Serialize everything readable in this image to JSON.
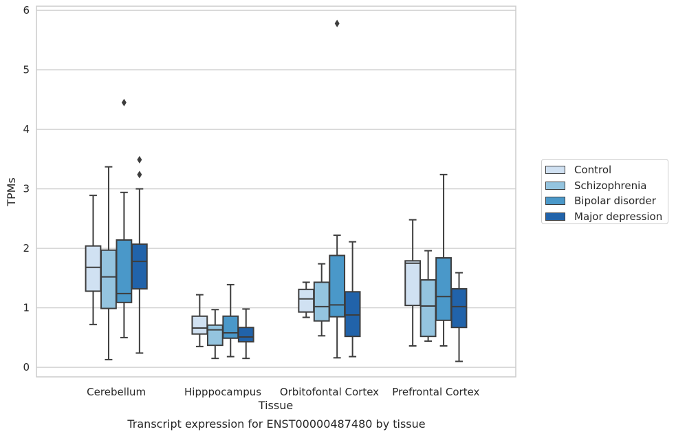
{
  "chart_data": {
    "type": "box",
    "title": "",
    "caption": "Transcript expression for ENST00000487480 by tissue",
    "xlabel": "Tissue",
    "ylabel": "TPMs",
    "ylim": [
      -0.16,
      6.07
    ],
    "yticks": [
      0,
      1,
      2,
      3,
      4,
      5,
      6
    ],
    "grid": "horizontal",
    "legend_position": "right",
    "categories": [
      "Cerebellum",
      "Hipppocampus",
      "Orbitofontal Cortex",
      "Prefrontal Cortex"
    ],
    "series": [
      {
        "name": "Control",
        "color": "#d0e1f2",
        "boxes": [
          {
            "whisker_low": 0.72,
            "q1": 1.28,
            "median": 1.68,
            "q3": 2.04,
            "whisker_high": 2.89,
            "outliers": []
          },
          {
            "whisker_low": 0.35,
            "q1": 0.56,
            "median": 0.66,
            "q3": 0.86,
            "whisker_high": 1.22,
            "outliers": []
          },
          {
            "whisker_low": 0.84,
            "q1": 0.93,
            "median": 1.15,
            "q3": 1.31,
            "whisker_high": 1.43,
            "outliers": []
          },
          {
            "whisker_low": 0.36,
            "q1": 1.04,
            "median": 1.75,
            "q3": 1.79,
            "whisker_high": 2.48,
            "outliers": []
          }
        ]
      },
      {
        "name": "Schizophrenia",
        "color": "#94c4df",
        "boxes": [
          {
            "whisker_low": 0.13,
            "q1": 0.99,
            "median": 1.52,
            "q3": 1.97,
            "whisker_high": 3.37,
            "outliers": []
          },
          {
            "whisker_low": 0.15,
            "q1": 0.37,
            "median": 0.63,
            "q3": 0.71,
            "whisker_high": 0.97,
            "outliers": []
          },
          {
            "whisker_low": 0.53,
            "q1": 0.78,
            "median": 1.02,
            "q3": 1.43,
            "whisker_high": 1.74,
            "outliers": []
          },
          {
            "whisker_low": 0.44,
            "q1": 0.52,
            "median": 1.03,
            "q3": 1.47,
            "whisker_high": 1.96,
            "outliers": []
          }
        ]
      },
      {
        "name": "Bipolar disorder",
        "color": "#4a98c9",
        "boxes": [
          {
            "whisker_low": 0.5,
            "q1": 1.09,
            "median": 1.24,
            "q3": 2.14,
            "whisker_high": 2.94,
            "outliers": [
              4.45
            ]
          },
          {
            "whisker_low": 0.18,
            "q1": 0.49,
            "median": 0.58,
            "q3": 0.86,
            "whisker_high": 1.39,
            "outliers": []
          },
          {
            "whisker_low": 0.16,
            "q1": 0.85,
            "median": 1.05,
            "q3": 1.88,
            "whisker_high": 2.22,
            "outliers": [
              5.78
            ]
          },
          {
            "whisker_low": 0.36,
            "q1": 0.79,
            "median": 1.19,
            "q3": 1.84,
            "whisker_high": 3.24,
            "outliers": []
          }
        ]
      },
      {
        "name": "Major depression",
        "color": "#2163aa",
        "boxes": [
          {
            "whisker_low": 0.24,
            "q1": 1.32,
            "median": 1.78,
            "q3": 2.07,
            "whisker_high": 3.0,
            "outliers": [
              3.24,
              3.49
            ]
          },
          {
            "whisker_low": 0.15,
            "q1": 0.43,
            "median": 0.51,
            "q3": 0.67,
            "whisker_high": 0.98,
            "outliers": []
          },
          {
            "whisker_low": 0.18,
            "q1": 0.52,
            "median": 0.88,
            "q3": 1.27,
            "whisker_high": 2.11,
            "outliers": []
          },
          {
            "whisker_low": 0.1,
            "q1": 0.67,
            "median": 1.02,
            "q3": 1.32,
            "whisker_high": 1.59,
            "outliers": []
          }
        ]
      }
    ]
  },
  "style": {
    "edge_color": "#3d3d3d",
    "grid_color": "#cccccc",
    "background": "#ffffff"
  }
}
